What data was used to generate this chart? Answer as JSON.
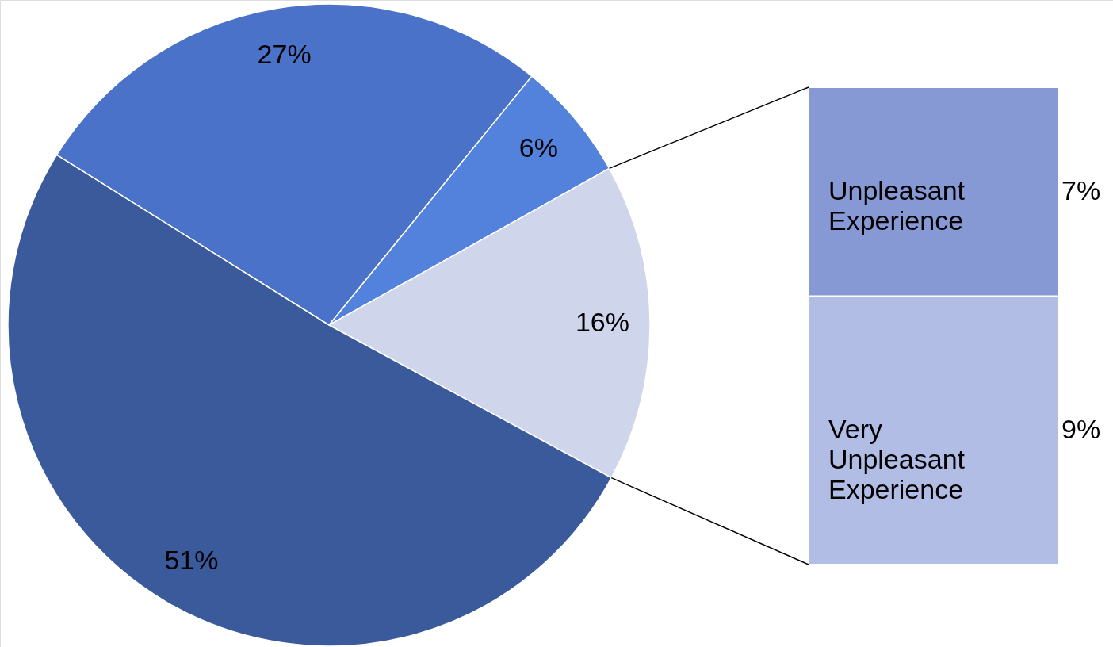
{
  "chart_data": [
    {
      "type": "pie",
      "categories": [
        null,
        null,
        null,
        null
      ],
      "values": [
        27,
        6,
        16,
        51
      ],
      "value_labels": [
        "27%",
        "6%",
        "16%",
        "51%"
      ],
      "colors": [
        "#4a72c8",
        "#5282dc",
        "#cfd5ea",
        "#3a5a9c"
      ]
    },
    {
      "type": "bar",
      "stacked": true,
      "categories": [
        null
      ],
      "series": [
        {
          "name": "Very Unpleasant Experience",
          "color": "#b2bde6",
          "values": [
            9
          ],
          "value_labels": [
            "9%"
          ]
        },
        {
          "name": "Unpleasant Experience",
          "color": "#8799d4",
          "values": [
            7
          ],
          "value_labels": [
            "7%"
          ]
        }
      ]
    }
  ]
}
